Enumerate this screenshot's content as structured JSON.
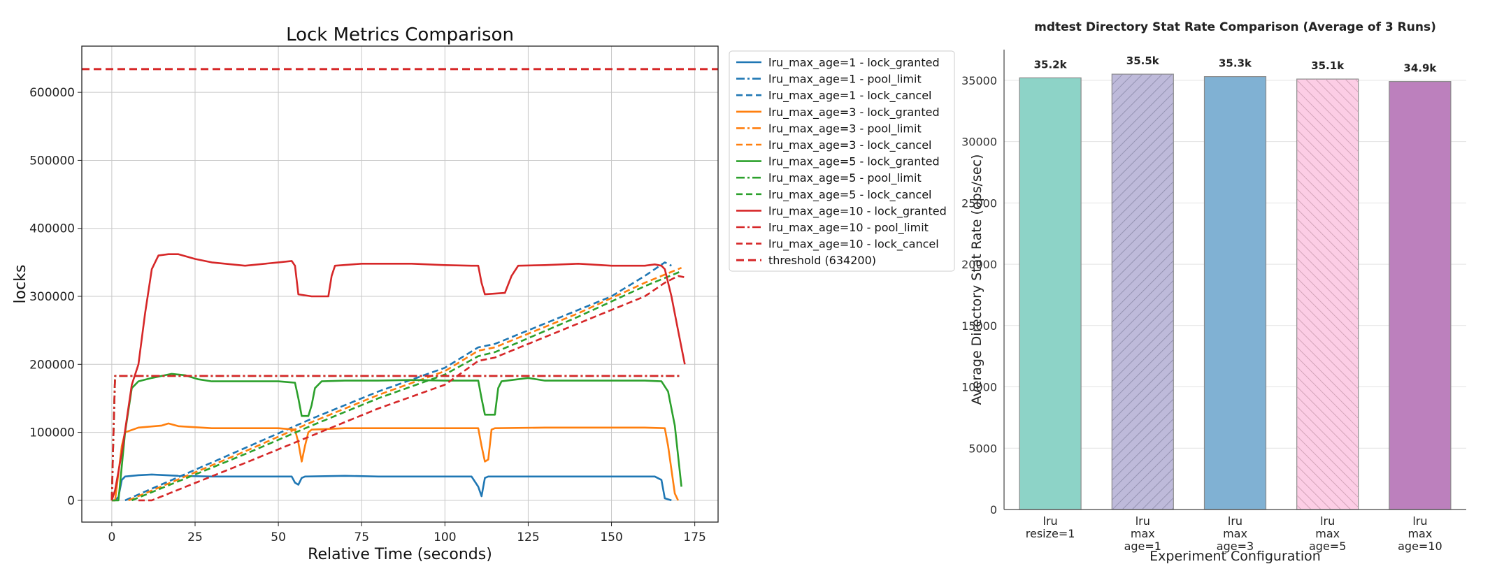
{
  "chart_data": [
    {
      "type": "line",
      "title": "Lock Metrics Comparison",
      "xlabel": "Relative Time (seconds)",
      "ylabel": "locks",
      "xlim": [
        -9,
        182
      ],
      "ylim": [
        -32000,
        668000
      ],
      "xticks": [
        0,
        25,
        50,
        75,
        100,
        125,
        150,
        175
      ],
      "xtick_labels": [
        "0",
        "25",
        "50",
        "75",
        "100",
        "125",
        "150",
        "175"
      ],
      "yticks": [
        0,
        100000,
        200000,
        300000,
        400000,
        500000,
        600000
      ],
      "ytick_labels": [
        "0",
        "100000",
        "200000",
        "300000",
        "400000",
        "500000",
        "600000"
      ],
      "grid": true,
      "legend_position": "outside-right",
      "colors": {
        "lru1": "#1f77b4",
        "lru3": "#ff7f0e",
        "lru5": "#2ca02c",
        "lru10": "#d62728",
        "threshold": "#d62728"
      },
      "series": [
        {
          "name": "lru_max_age=1 - lock_granted",
          "color": "#1f77b4",
          "style": "solid",
          "points": [
            [
              0,
              0
            ],
            [
              1,
              0
            ],
            [
              2,
              5000
            ],
            [
              3,
              30000
            ],
            [
              4,
              35000
            ],
            [
              8,
              37000
            ],
            [
              12,
              38000
            ],
            [
              20,
              36000
            ],
            [
              30,
              35000
            ],
            [
              40,
              35000
            ],
            [
              50,
              35000
            ],
            [
              54,
              35000
            ],
            [
              55,
              26000
            ],
            [
              56,
              23000
            ],
            [
              57,
              33000
            ],
            [
              58,
              35000
            ],
            [
              70,
              36000
            ],
            [
              80,
              35000
            ],
            [
              90,
              35000
            ],
            [
              100,
              35000
            ],
            [
              108,
              35000
            ],
            [
              110,
              20000
            ],
            [
              111,
              6000
            ],
            [
              112,
              33000
            ],
            [
              113,
              35000
            ],
            [
              125,
              35000
            ],
            [
              140,
              35000
            ],
            [
              155,
              35000
            ],
            [
              163,
              35000
            ],
            [
              165,
              30000
            ],
            [
              166,
              3000
            ],
            [
              168,
              0
            ]
          ]
        },
        {
          "name": "lru_max_age=1 - pool_limit",
          "color": "#1f77b4",
          "style": "dashdot",
          "points": [
            [
              0,
              0
            ],
            [
              0.5,
              100000
            ],
            [
              1,
              183000
            ],
            [
              171,
              183000
            ]
          ]
        },
        {
          "name": "lru_max_age=1 - lock_cancel",
          "color": "#1f77b4",
          "style": "dashed",
          "points": [
            [
              4,
              0
            ],
            [
              40,
              77000
            ],
            [
              60,
              120000
            ],
            [
              80,
              160000
            ],
            [
              100,
              195000
            ],
            [
              110,
              225000
            ],
            [
              115,
              230000
            ],
            [
              120,
              240000
            ],
            [
              140,
              280000
            ],
            [
              150,
              300000
            ],
            [
              160,
              330000
            ],
            [
              166,
              350000
            ],
            [
              168,
              345000
            ]
          ]
        },
        {
          "name": "lru_max_age=3 - lock_granted",
          "color": "#ff7f0e",
          "style": "solid",
          "points": [
            [
              0,
              0
            ],
            [
              1,
              0
            ],
            [
              3,
              80000
            ],
            [
              4,
              100000
            ],
            [
              8,
              107000
            ],
            [
              15,
              110000
            ],
            [
              17,
              113000
            ],
            [
              20,
              109000
            ],
            [
              30,
              106000
            ],
            [
              40,
              106000
            ],
            [
              50,
              106000
            ],
            [
              55,
              104000
            ],
            [
              56,
              85000
            ],
            [
              57,
              57000
            ],
            [
              58,
              80000
            ],
            [
              59,
              100000
            ],
            [
              60,
              104000
            ],
            [
              70,
              106000
            ],
            [
              80,
              106000
            ],
            [
              90,
              106000
            ],
            [
              100,
              106000
            ],
            [
              110,
              106000
            ],
            [
              111,
              80000
            ],
            [
              112,
              57000
            ],
            [
              113,
              60000
            ],
            [
              114,
              104000
            ],
            [
              115,
              106000
            ],
            [
              130,
              107000
            ],
            [
              140,
              107000
            ],
            [
              150,
              107000
            ],
            [
              160,
              107000
            ],
            [
              166,
              106000
            ],
            [
              167,
              80000
            ],
            [
              169,
              10000
            ],
            [
              170,
              0
            ]
          ]
        },
        {
          "name": "lru_max_age=3 - pool_limit",
          "color": "#ff7f0e",
          "style": "dashdot",
          "points": [
            [
              0,
              0
            ],
            [
              0.5,
              100000
            ],
            [
              1,
              183000
            ],
            [
              171,
              183000
            ]
          ]
        },
        {
          "name": "lru_max_age=3 - lock_cancel",
          "color": "#ff7f0e",
          "style": "dashed",
          "points": [
            [
              5,
              0
            ],
            [
              40,
              72000
            ],
            [
              60,
              115000
            ],
            [
              80,
              155000
            ],
            [
              100,
              190000
            ],
            [
              110,
              220000
            ],
            [
              115,
              225000
            ],
            [
              120,
              235000
            ],
            [
              140,
              275000
            ],
            [
              160,
              320000
            ],
            [
              170,
              340000
            ],
            [
              171,
              342000
            ]
          ]
        },
        {
          "name": "lru_max_age=5 - lock_granted",
          "color": "#2ca02c",
          "style": "solid",
          "points": [
            [
              0,
              0
            ],
            [
              2,
              0
            ],
            [
              4,
              100000
            ],
            [
              6,
              165000
            ],
            [
              8,
              175000
            ],
            [
              12,
              180000
            ],
            [
              18,
              186000
            ],
            [
              22,
              184000
            ],
            [
              26,
              178000
            ],
            [
              30,
              175000
            ],
            [
              40,
              175000
            ],
            [
              50,
              175000
            ],
            [
              55,
              173000
            ],
            [
              56,
              150000
            ],
            [
              57,
              124000
            ],
            [
              59,
              124000
            ],
            [
              60,
              140000
            ],
            [
              61,
              165000
            ],
            [
              63,
              175000
            ],
            [
              70,
              176000
            ],
            [
              80,
              176000
            ],
            [
              90,
              177000
            ],
            [
              100,
              176000
            ],
            [
              110,
              176000
            ],
            [
              111,
              150000
            ],
            [
              112,
              126000
            ],
            [
              115,
              126000
            ],
            [
              116,
              165000
            ],
            [
              117,
              175000
            ],
            [
              125,
              180000
            ],
            [
              130,
              176000
            ],
            [
              140,
              176000
            ],
            [
              150,
              176000
            ],
            [
              160,
              176000
            ],
            [
              165,
              175000
            ],
            [
              167,
              160000
            ],
            [
              169,
              110000
            ],
            [
              171,
              20000
            ]
          ]
        },
        {
          "name": "lru_max_age=5 - pool_limit",
          "color": "#2ca02c",
          "style": "dashdot",
          "points": [
            [
              0,
              0
            ],
            [
              0.5,
              100000
            ],
            [
              1,
              183000
            ],
            [
              171,
              183000
            ]
          ]
        },
        {
          "name": "lru_max_age=5 - lock_cancel",
          "color": "#2ca02c",
          "style": "dashed",
          "points": [
            [
              6,
              0
            ],
            [
              40,
              68000
            ],
            [
              60,
              110000
            ],
            [
              80,
              150000
            ],
            [
              100,
              185000
            ],
            [
              110,
              212000
            ],
            [
              115,
              218000
            ],
            [
              120,
              228000
            ],
            [
              140,
              270000
            ],
            [
              160,
              315000
            ],
            [
              170,
              335000
            ],
            [
              171,
              338000
            ]
          ]
        },
        {
          "name": "lru_max_age=10 - lock_granted",
          "color": "#d62728",
          "style": "solid",
          "points": [
            [
              0,
              0
            ],
            [
              1,
              15000
            ],
            [
              3,
              70000
            ],
            [
              6,
              170000
            ],
            [
              8,
              200000
            ],
            [
              10,
              275000
            ],
            [
              12,
              340000
            ],
            [
              14,
              360000
            ],
            [
              17,
              362000
            ],
            [
              20,
              362000
            ],
            [
              25,
              355000
            ],
            [
              30,
              350000
            ],
            [
              40,
              345000
            ],
            [
              50,
              350000
            ],
            [
              54,
              352000
            ],
            [
              55,
              345000
            ],
            [
              56,
              303000
            ],
            [
              60,
              300000
            ],
            [
              65,
              300000
            ],
            [
              66,
              330000
            ],
            [
              67,
              345000
            ],
            [
              75,
              348000
            ],
            [
              80,
              348000
            ],
            [
              90,
              348000
            ],
            [
              100,
              346000
            ],
            [
              108,
              345000
            ],
            [
              110,
              345000
            ],
            [
              111,
              320000
            ],
            [
              112,
              303000
            ],
            [
              118,
              305000
            ],
            [
              120,
              330000
            ],
            [
              122,
              345000
            ],
            [
              130,
              346000
            ],
            [
              140,
              348000
            ],
            [
              150,
              345000
            ],
            [
              160,
              345000
            ],
            [
              163,
              347000
            ],
            [
              165,
              345000
            ],
            [
              166,
              340000
            ],
            [
              168,
              300000
            ],
            [
              170,
              250000
            ],
            [
              172,
              200000
            ]
          ]
        },
        {
          "name": "lru_max_age=10 - pool_limit",
          "color": "#d62728",
          "style": "dashdot",
          "points": [
            [
              0,
              0
            ],
            [
              0.5,
              100000
            ],
            [
              1,
              183000
            ],
            [
              171,
              183000
            ]
          ]
        },
        {
          "name": "lru_max_age=10 - lock_cancel",
          "color": "#d62728",
          "style": "dashed",
          "points": [
            [
              8,
              0
            ],
            [
              12,
              0
            ],
            [
              40,
              55000
            ],
            [
              60,
              95000
            ],
            [
              80,
              135000
            ],
            [
              100,
              170000
            ],
            [
              110,
              205000
            ],
            [
              115,
              210000
            ],
            [
              120,
              220000
            ],
            [
              140,
              260000
            ],
            [
              160,
              300000
            ],
            [
              166,
              320000
            ],
            [
              170,
              330000
            ],
            [
              172,
              328000
            ]
          ]
        },
        {
          "name": "threshold (634200)",
          "color": "#d62728",
          "style": "dashed-thick",
          "points": [
            [
              -9,
              634200
            ],
            [
              182,
              634200
            ]
          ]
        }
      ]
    },
    {
      "type": "bar",
      "title": "mdtest Directory Stat Rate Comparison (Average of 3 Runs)",
      "xlabel": "Experiment Configuration",
      "ylabel": "Average Directory Stat Rate (ops/sec)",
      "ylim": [
        0,
        37500
      ],
      "yticks": [
        0,
        5000,
        10000,
        15000,
        20000,
        25000,
        30000,
        35000
      ],
      "ytick_labels": [
        "0",
        "5000",
        "10000",
        "15000",
        "20000",
        "25000",
        "30000",
        "35000"
      ],
      "grid": true,
      "categories": [
        [
          "lru",
          "resize=1"
        ],
        [
          "lru",
          "max",
          "age=1"
        ],
        [
          "lru",
          "max",
          "age=3"
        ],
        [
          "lru",
          "max",
          "age=5"
        ],
        [
          "lru",
          "max",
          "age=10"
        ]
      ],
      "values": [
        35200,
        35500,
        35300,
        35100,
        34900
      ],
      "bar_labels": [
        "35.2k",
        "35.5k",
        "35.3k",
        "35.1k",
        "34.9k"
      ],
      "colors": [
        "#8dd3c7",
        "#bebada",
        "#80b1d3",
        "#fccde5",
        "#bc80bd"
      ],
      "hatch": [
        "none",
        "diag-right",
        "none",
        "diag-left",
        "none"
      ]
    }
  ]
}
